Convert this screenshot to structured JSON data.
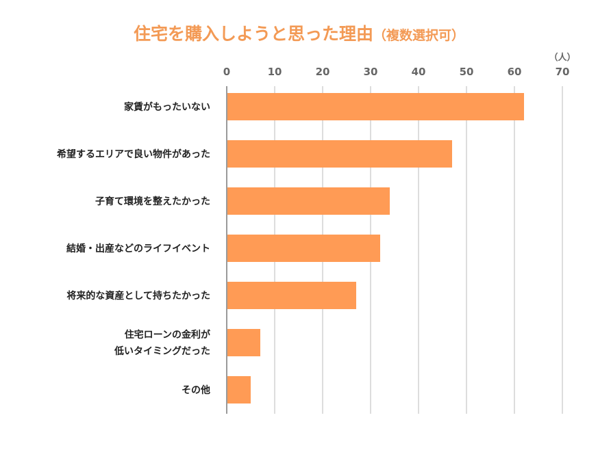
{
  "chart_data": {
    "type": "bar",
    "orientation": "horizontal",
    "title": "住宅を購入しようと思った理由",
    "subtitle": "（複数選択可）",
    "unit_label": "（人）",
    "categories": [
      [
        "家賃がもったいない"
      ],
      [
        "希望するエリアで良い物件があった"
      ],
      [
        "子育て環境を整えたかった"
      ],
      [
        "結婚・出産などのライフイベント"
      ],
      [
        "将来的な資産として持ちたかった"
      ],
      [
        "住宅ローンの金利が",
        "低いタイミングだった"
      ],
      [
        "その他"
      ]
    ],
    "values": [
      62,
      47,
      34,
      32,
      27,
      7,
      5
    ],
    "xlim": [
      0,
      70
    ],
    "ticks": [
      0,
      10,
      20,
      30,
      40,
      50,
      60,
      70
    ],
    "grid": true,
    "bar_color": "#ff9b55",
    "title_color": "#f39a55"
  }
}
